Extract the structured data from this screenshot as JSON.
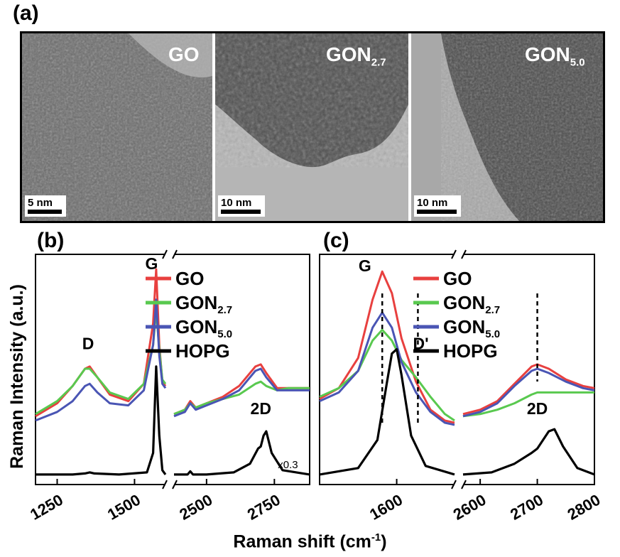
{
  "panels": {
    "a": "(a)",
    "b": "(b)",
    "c": "(c)"
  },
  "tem": [
    {
      "label": "GO",
      "sub": "",
      "scale": "5 nm"
    },
    {
      "label": "GON",
      "sub": "2.7",
      "scale": "10 nm"
    },
    {
      "label": "GON",
      "sub": "5.0",
      "scale": "10 nm"
    }
  ],
  "axis": {
    "ylabel": "Raman Intensity (a.u.)",
    "xlabel": "Raman shift (cm",
    "xlabel_sup": "-1",
    "xlabel_end": ")"
  },
  "colors": {
    "GO": "#e8403f",
    "GON2.7": "#59c94f",
    "GON5.0": "#4a55b4",
    "HOPG": "#000000"
  },
  "chart_data": [
    {
      "type": "line",
      "panel": "b",
      "x_segments": [
        [
          1180,
          1600
        ],
        [
          2380,
          2880
        ]
      ],
      "xticks": [
        1250,
        1500,
        2500,
        2750
      ],
      "ylim": [
        0,
        1
      ],
      "legend": [
        {
          "name": "GO",
          "sub": "",
          "color": "#e8403f"
        },
        {
          "name": "GON",
          "sub": "2.7",
          "color": "#59c94f"
        },
        {
          "name": "GON",
          "sub": "5.0",
          "color": "#4a55b4"
        },
        {
          "name": "HOPG",
          "sub": "",
          "color": "#000000"
        }
      ],
      "annotations": [
        {
          "text": "D",
          "x": 1350,
          "y": 0.6
        },
        {
          "text": "G",
          "x": 1555,
          "y": 0.97
        },
        {
          "text": "2D",
          "x": 2700,
          "y": 0.3
        },
        {
          "text": "x0.3",
          "x": 2800,
          "y": 0.05
        }
      ],
      "series": [
        {
          "name": "GO",
          "color": "#e8403f",
          "x": [
            1180,
            1250,
            1300,
            1340,
            1355,
            1380,
            1420,
            1480,
            1530,
            1560,
            1570,
            1580,
            1590,
            1600,
            2380,
            2420,
            2440,
            2460,
            2500,
            2560,
            2620,
            2680,
            2700,
            2720,
            2760,
            2800,
            2840,
            2880
          ],
          "y": [
            0.29,
            0.35,
            0.43,
            0.51,
            0.52,
            0.47,
            0.39,
            0.36,
            0.44,
            0.72,
            0.97,
            0.62,
            0.45,
            0.43,
            0.3,
            0.32,
            0.36,
            0.33,
            0.35,
            0.38,
            0.43,
            0.52,
            0.53,
            0.49,
            0.42,
            0.42,
            0.42,
            0.42
          ]
        },
        {
          "name": "GON2.7",
          "color": "#59c94f",
          "x": [
            1180,
            1250,
            1300,
            1340,
            1355,
            1380,
            1420,
            1480,
            1530,
            1560,
            1570,
            1580,
            1590,
            1600,
            2380,
            2420,
            2440,
            2460,
            2500,
            2560,
            2620,
            2680,
            2700,
            2720,
            2760,
            2800,
            2840,
            2880
          ],
          "y": [
            0.3,
            0.36,
            0.43,
            0.51,
            0.51,
            0.47,
            0.4,
            0.37,
            0.44,
            0.62,
            0.78,
            0.6,
            0.46,
            0.44,
            0.3,
            0.32,
            0.35,
            0.33,
            0.35,
            0.37,
            0.39,
            0.44,
            0.45,
            0.43,
            0.41,
            0.42,
            0.42,
            0.42
          ]
        },
        {
          "name": "GON5.0",
          "color": "#4a55b4",
          "x": [
            1180,
            1250,
            1300,
            1340,
            1355,
            1380,
            1420,
            1480,
            1530,
            1560,
            1570,
            1580,
            1590,
            1600,
            2380,
            2420,
            2440,
            2460,
            2500,
            2560,
            2620,
            2680,
            2700,
            2720,
            2760,
            2800,
            2840,
            2880
          ],
          "y": [
            0.27,
            0.31,
            0.36,
            0.43,
            0.44,
            0.4,
            0.35,
            0.34,
            0.41,
            0.62,
            0.83,
            0.57,
            0.44,
            0.42,
            0.29,
            0.31,
            0.35,
            0.32,
            0.34,
            0.37,
            0.41,
            0.5,
            0.51,
            0.47,
            0.41,
            0.41,
            0.41,
            0.41
          ]
        },
        {
          "name": "HOPG",
          "color": "#000000",
          "x": [
            1180,
            1300,
            1340,
            1355,
            1370,
            1450,
            1540,
            1560,
            1570,
            1580,
            1590,
            1600,
            2380,
            2430,
            2440,
            2450,
            2500,
            2600,
            2660,
            2690,
            2700,
            2710,
            2720,
            2740,
            2780,
            2880
          ],
          "y": [
            0.02,
            0.02,
            0.025,
            0.03,
            0.025,
            0.02,
            0.03,
            0.12,
            0.52,
            0.2,
            0.04,
            0.02,
            0.02,
            0.02,
            0.035,
            0.02,
            0.02,
            0.03,
            0.07,
            0.14,
            0.15,
            0.2,
            0.22,
            0.12,
            0.04,
            0.02
          ]
        }
      ]
    },
    {
      "type": "line",
      "panel": "c",
      "x_segments": [
        [
          1520,
          1660
        ],
        [
          2570,
          2800
        ]
      ],
      "xticks": [
        1600,
        2600,
        2700,
        2800
      ],
      "ylim": [
        0,
        1
      ],
      "legend": [
        {
          "name": "GO",
          "sub": "",
          "color": "#e8403f"
        },
        {
          "name": "GON",
          "sub": "2.7",
          "color": "#59c94f"
        },
        {
          "name": "GON",
          "sub": "5.0",
          "color": "#4a55b4"
        },
        {
          "name": "HOPG",
          "sub": "",
          "color": "#000000"
        }
      ],
      "annotations": [
        {
          "text": "G",
          "x": 1567,
          "y": 0.96
        },
        {
          "text": "D'",
          "x": 1625,
          "y": 0.6
        },
        {
          "text": "2D",
          "x": 2700,
          "y": 0.3
        }
      ],
      "dashed_lines": [
        1585,
        1622,
        2700
      ],
      "series": [
        {
          "name": "GO",
          "color": "#e8403f",
          "x": [
            1520,
            1540,
            1560,
            1575,
            1585,
            1595,
            1605,
            1620,
            1635,
            1650,
            1660,
            2570,
            2600,
            2630,
            2660,
            2690,
            2700,
            2720,
            2750,
            2780,
            2800
          ],
          "y": [
            0.37,
            0.42,
            0.56,
            0.83,
            0.96,
            0.86,
            0.65,
            0.45,
            0.32,
            0.27,
            0.26,
            0.3,
            0.32,
            0.36,
            0.44,
            0.52,
            0.53,
            0.51,
            0.46,
            0.43,
            0.42
          ]
        },
        {
          "name": "GON2.7",
          "color": "#59c94f",
          "x": [
            1520,
            1540,
            1560,
            1575,
            1585,
            1595,
            1605,
            1620,
            1635,
            1650,
            1660,
            2570,
            2600,
            2630,
            2660,
            2690,
            2700,
            2720,
            2750,
            2780,
            2800
          ],
          "y": [
            0.38,
            0.42,
            0.5,
            0.64,
            0.69,
            0.64,
            0.55,
            0.47,
            0.38,
            0.3,
            0.27,
            0.29,
            0.3,
            0.32,
            0.35,
            0.39,
            0.4,
            0.4,
            0.4,
            0.4,
            0.4
          ]
        },
        {
          "name": "GON5.0",
          "color": "#4a55b4",
          "x": [
            1520,
            1540,
            1560,
            1575,
            1585,
            1595,
            1605,
            1620,
            1635,
            1650,
            1660,
            2570,
            2600,
            2630,
            2660,
            2690,
            2700,
            2720,
            2750,
            2780,
            2800
          ],
          "y": [
            0.36,
            0.4,
            0.5,
            0.7,
            0.77,
            0.7,
            0.54,
            0.4,
            0.31,
            0.26,
            0.25,
            0.29,
            0.31,
            0.35,
            0.43,
            0.5,
            0.51,
            0.49,
            0.45,
            0.42,
            0.41
          ]
        },
        {
          "name": "HOPG",
          "color": "#000000",
          "x": [
            1520,
            1560,
            1580,
            1590,
            1595,
            1600,
            1605,
            1615,
            1630,
            1660,
            2570,
            2620,
            2660,
            2690,
            2700,
            2720,
            2730,
            2745,
            2770,
            2800
          ],
          "y": [
            0.02,
            0.05,
            0.18,
            0.45,
            0.58,
            0.6,
            0.48,
            0.2,
            0.06,
            0.02,
            0.02,
            0.03,
            0.07,
            0.12,
            0.14,
            0.22,
            0.23,
            0.15,
            0.05,
            0.02
          ]
        }
      ]
    }
  ]
}
